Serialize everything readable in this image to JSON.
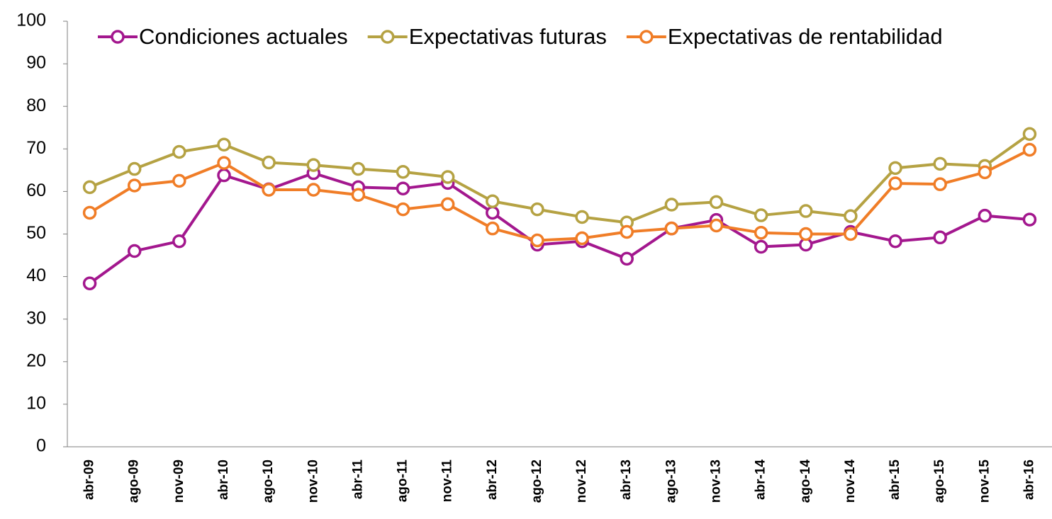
{
  "chart_data": {
    "type": "line",
    "categories": [
      "abr-09",
      "ago-09",
      "nov-09",
      "abr-10",
      "ago-10",
      "nov-10",
      "abr-11",
      "ago-11",
      "nov-11",
      "abr-12",
      "ago-12",
      "nov-12",
      "abr-13",
      "ago-13",
      "nov-13",
      "abr-14",
      "ago-14",
      "nov-14",
      "abr-15",
      "ago-15",
      "nov-15",
      "abr-16"
    ],
    "series": [
      {
        "name": "Condiciones actuales",
        "color": "#a3178e",
        "values": [
          38.4,
          46,
          48.3,
          63.8,
          60.5,
          64.3,
          61,
          60.7,
          62,
          55,
          47.5,
          48.3,
          44.2,
          51.3,
          53.3,
          47,
          47.5,
          50.5,
          48.3,
          49.2,
          54.3,
          53.4
        ]
      },
      {
        "name": "Expectativas futuras",
        "color": "#b5a243",
        "values": [
          61,
          65.3,
          69.3,
          71,
          66.8,
          66.2,
          65.3,
          64.6,
          63.4,
          57.7,
          55.8,
          54,
          52.7,
          56.9,
          57.5,
          54.4,
          55.4,
          54.2,
          65.5,
          66.5,
          66,
          73.5
        ]
      },
      {
        "name": "Expectativas de rentabilidad",
        "color": "#f07d27",
        "values": [
          55,
          61.4,
          62.5,
          66.7,
          60.4,
          60.4,
          59.2,
          55.8,
          57,
          51.3,
          48.5,
          49,
          50.5,
          51.3,
          52,
          50.3,
          50,
          50,
          61.9,
          61.7,
          64.5,
          69.8
        ]
      }
    ],
    "ylim": [
      0,
      100
    ],
    "yticks": [
      0,
      10,
      20,
      30,
      40,
      50,
      60,
      70,
      80,
      90,
      100
    ],
    "grid": false,
    "legend": "top"
  }
}
